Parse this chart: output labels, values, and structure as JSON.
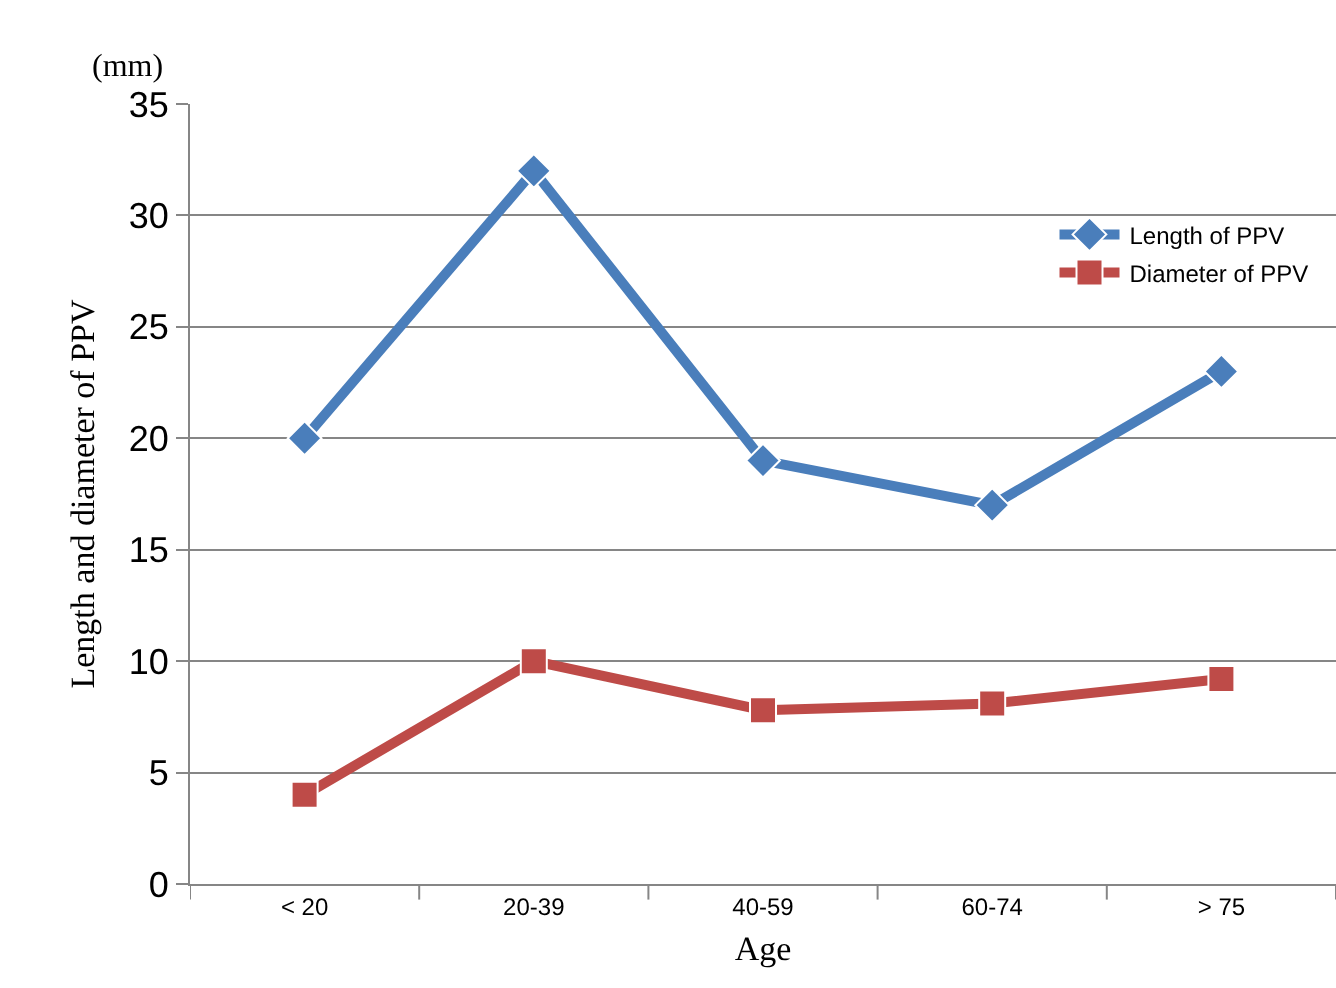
{
  "chart_data": {
    "type": "line",
    "xlabel": "Age",
    "ylabel": "Length and diameter of PPV",
    "annotations": [
      "(mm)"
    ],
    "categories": [
      "< 20",
      "20-39",
      "40-59",
      "60-74",
      "> 75"
    ],
    "series": [
      {
        "name": "Length of PPV",
        "color": "#4a7ebb",
        "marker": "diamond",
        "values": [
          20,
          32,
          19,
          17,
          23
        ]
      },
      {
        "name": "Diameter of PPV",
        "color": "#be4b48",
        "marker": "square",
        "values": [
          4,
          10,
          7.8,
          8.1,
          9.2
        ]
      }
    ],
    "ylim": [
      0,
      35
    ],
    "yticks": [
      0,
      5,
      10,
      15,
      20,
      25,
      30,
      35
    ],
    "grid": "y",
    "legend": "top right",
    "line_style": "solid"
  }
}
